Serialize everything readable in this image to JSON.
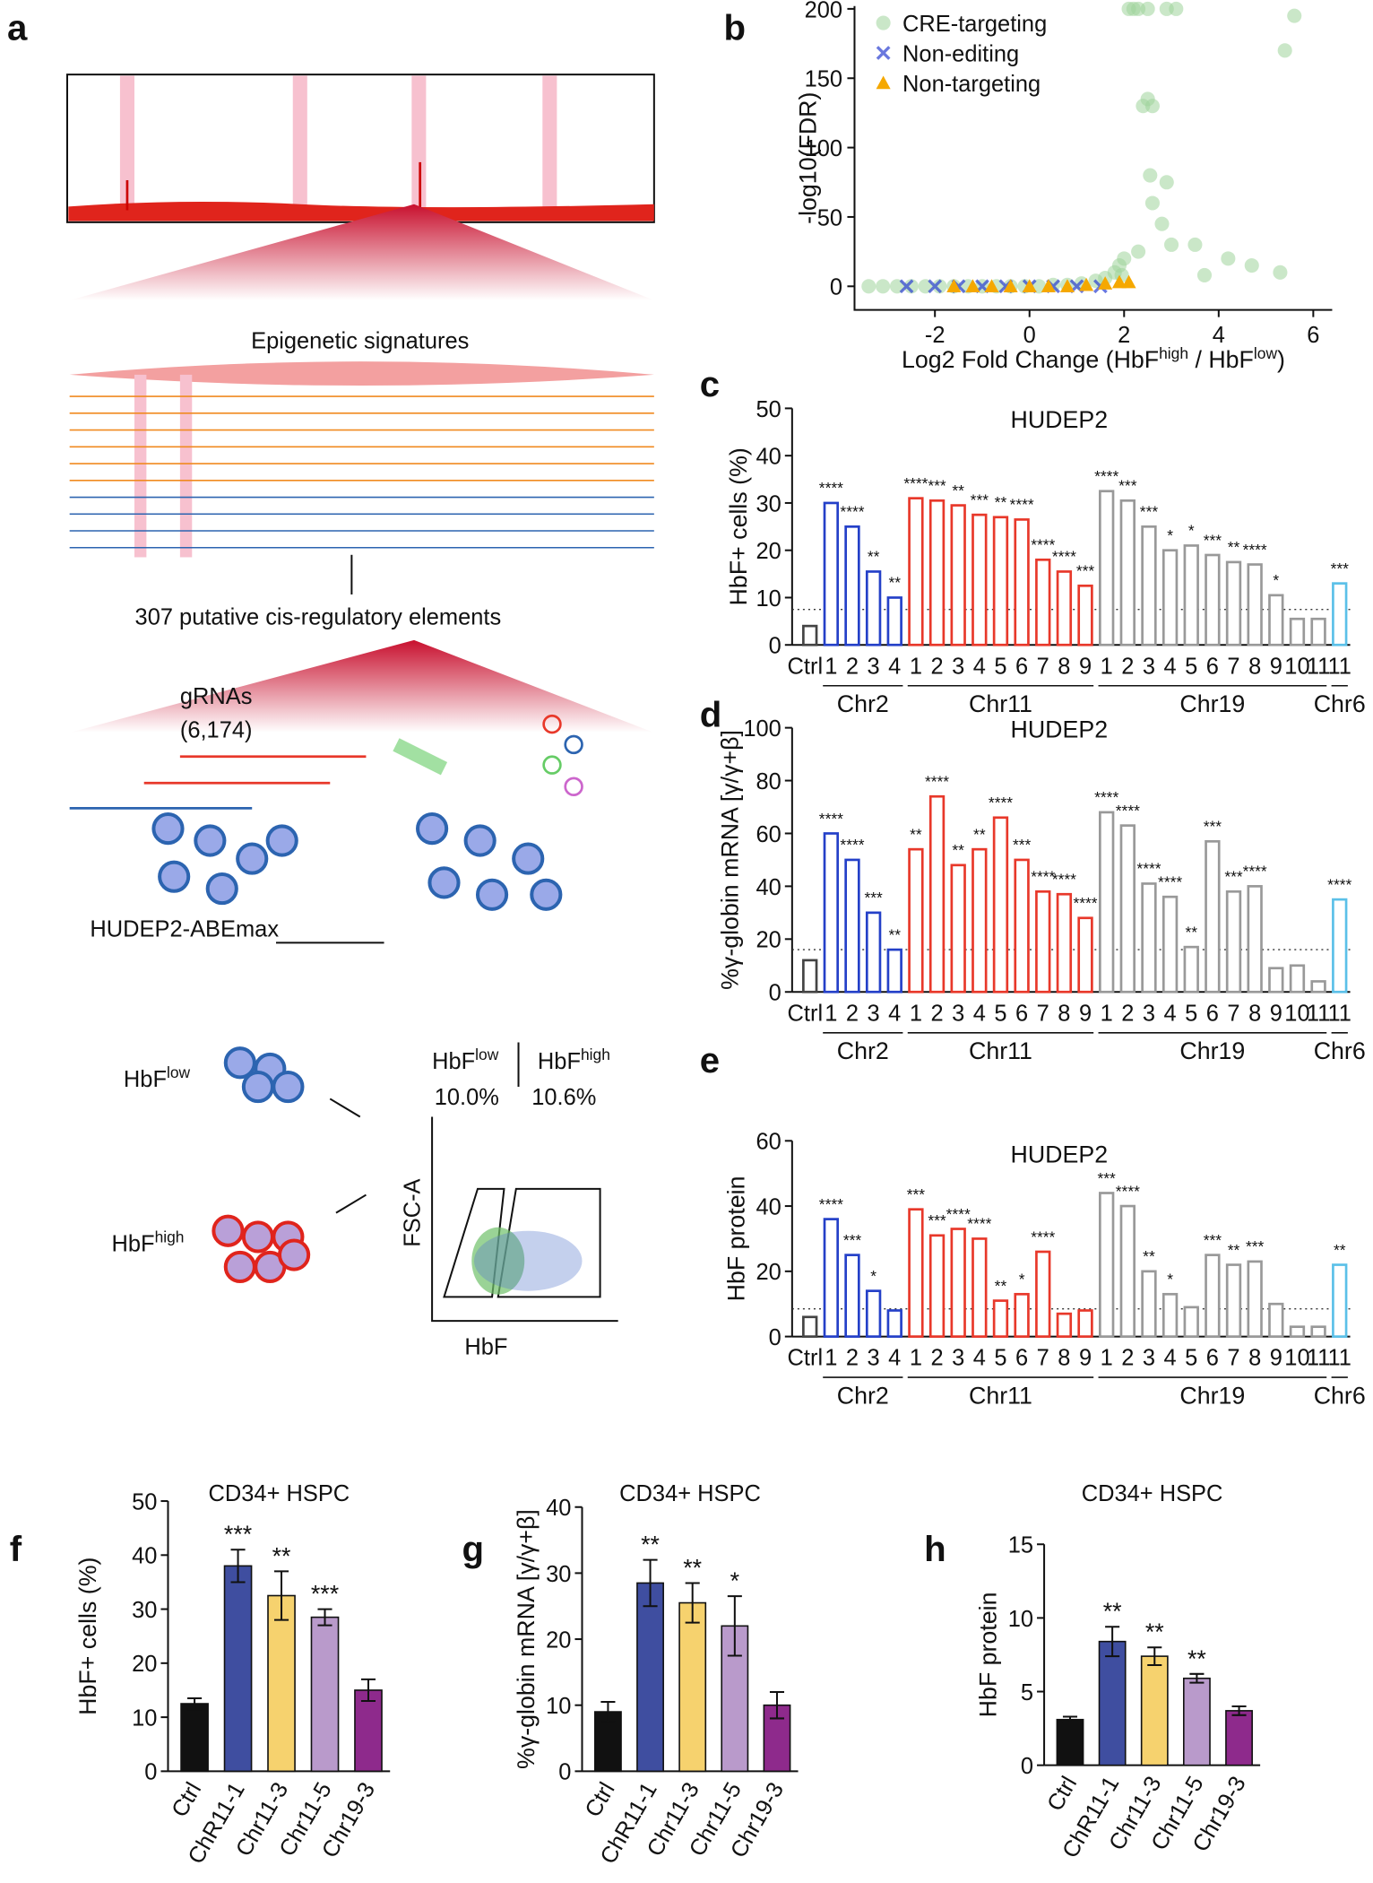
{
  "diagram": {
    "panel": "a",
    "epigenetic": "Epigenetic signatures",
    "elements": "307 putative cis-regulatory elements",
    "grnas": "gRNAs",
    "grna_count": "(6,174)",
    "cell_line": "HUDEP2-ABEmax",
    "hbf_low": [
      "HbF",
      "low"
    ],
    "hbf_high": [
      "HbF",
      "high"
    ],
    "gate_low": [
      "HbF",
      "low"
    ],
    "gate_high": [
      "HbF",
      "high"
    ],
    "pct_low": "10.0%",
    "pct_high": "10.6%",
    "y_axis": "FSC-A",
    "x_axis": "HbF"
  },
  "chart_data": [
    {
      "type": "scatter",
      "panel": "b",
      "ylabel": "-log10(FDR)",
      "xlabel": [
        "Log2 Fold Change (HbF",
        "high",
        " / HbF",
        "low",
        ")"
      ],
      "xlim": [
        -3.7,
        6.4
      ],
      "ylim": [
        -17,
        202
      ],
      "xticks": [
        -2,
        0,
        2,
        4,
        6
      ],
      "yticks": [
        0,
        50,
        100,
        150,
        200
      ],
      "legend": "upper left",
      "series": [
        {
          "name": "CRE-targeting",
          "color": "#9fd49a",
          "marker": "circle",
          "x": [
            -3.4,
            -3.1,
            -2.8,
            -2.5,
            -2.2,
            -1.9,
            -1.6,
            -1.3,
            -1.0,
            -0.7,
            -0.4,
            -0.1,
            0.2,
            0.5,
            0.8,
            1.1,
            1.4,
            1.6,
            1.8,
            1.9,
            2.0,
            2.1,
            1.95,
            2.2,
            2.3,
            2.5,
            2.9,
            3.1,
            5.6,
            5.4,
            2.4,
            2.5,
            2.6,
            2.55,
            2.9,
            2.6,
            2.8,
            3.0,
            3.5,
            4.2,
            4.7,
            5.3,
            3.7,
            2.3
          ],
          "values": [
            0,
            0,
            0,
            0,
            0,
            0,
            0,
            0,
            0,
            0,
            0,
            0,
            0,
            1,
            1,
            2,
            4,
            6,
            10,
            15,
            20,
            200,
            8,
            200,
            200,
            200,
            200,
            200,
            195,
            170,
            130,
            135,
            130,
            80,
            75,
            60,
            45,
            30,
            30,
            20,
            15,
            10,
            8,
            25
          ]
        },
        {
          "name": "Non-editing",
          "color": "#2b3fd0",
          "marker": "x",
          "x": [
            -2.6,
            -2.0,
            -1.5,
            -1.0,
            -0.5,
            0,
            0.5,
            1.0,
            1.5
          ],
          "values": [
            0,
            0,
            0,
            0,
            0,
            0,
            0,
            0,
            0
          ]
        },
        {
          "name": "Non-targeting",
          "color": "#f5a800",
          "marker": "triangle",
          "x": [
            -1.6,
            -1.2,
            -0.8,
            -0.4,
            0,
            0.4,
            0.8,
            1.2,
            1.6,
            1.9,
            2.1
          ],
          "values": [
            0,
            0,
            0,
            0,
            0,
            0,
            0,
            1,
            2,
            3,
            3
          ]
        }
      ]
    },
    {
      "type": "bar",
      "panel": "c",
      "title": "HUDEP2",
      "ylabel": "HbF+ cells (%)",
      "filled": false,
      "categories": [
        "Ctrl",
        "1",
        "2",
        "3",
        "4",
        "1",
        "2",
        "3",
        "4",
        "5",
        "6",
        "7",
        "8",
        "9",
        "1",
        "2",
        "3",
        "4",
        "5",
        "6",
        "7",
        "8",
        "9",
        "10",
        "11",
        "11"
      ],
      "category_groups": [
        null,
        "Chr2",
        "Chr2",
        "Chr2",
        "Chr2",
        "Chr11",
        "Chr11",
        "Chr11",
        "Chr11",
        "Chr11",
        "Chr11",
        "Chr11",
        "Chr11",
        "Chr11",
        "Chr19",
        "Chr19",
        "Chr19",
        "Chr19",
        "Chr19",
        "Chr19",
        "Chr19",
        "Chr19",
        "Chr19",
        "Chr19",
        "Chr19",
        "Chr6"
      ],
      "colors": [
        "#444",
        "#2440c8",
        "#2440c8",
        "#2440c8",
        "#2440c8",
        "#e8382a",
        "#e8382a",
        "#e8382a",
        "#e8382a",
        "#e8382a",
        "#e8382a",
        "#e8382a",
        "#e8382a",
        "#e8382a",
        "#999",
        "#999",
        "#999",
        "#999",
        "#999",
        "#999",
        "#999",
        "#999",
        "#999",
        "#999",
        "#999",
        "#5bc0e8"
      ],
      "values": [
        4,
        30,
        25,
        15.5,
        10,
        31,
        30.5,
        29.5,
        27.5,
        27,
        26.5,
        18,
        15.5,
        12.5,
        32.5,
        30.5,
        25,
        20,
        21,
        19,
        17.5,
        17,
        10.5,
        5.5,
        5.5,
        13
      ],
      "significance": [
        null,
        "****",
        "****",
        "**",
        "**",
        "****",
        "***",
        "**",
        "***",
        "**",
        "****",
        "****",
        "****",
        "***",
        "****",
        "***",
        "***",
        "*",
        "*",
        "***",
        "**",
        "****",
        "*",
        null,
        null,
        "***"
      ],
      "reference_line": 7.5,
      "ylim": [
        0,
        50
      ],
      "yticks": [
        0,
        10,
        20,
        30,
        40,
        50
      ]
    },
    {
      "type": "bar",
      "panel": "d",
      "title": "HUDEP2",
      "ylabel": "%γ-globin mRNA [γ/γ+β]",
      "filled": false,
      "categories": [
        "Ctrl",
        "1",
        "2",
        "3",
        "4",
        "1",
        "2",
        "3",
        "4",
        "5",
        "6",
        "7",
        "8",
        "9",
        "1",
        "2",
        "3",
        "4",
        "5",
        "6",
        "7",
        "8",
        "9",
        "10",
        "11",
        "11"
      ],
      "category_groups": [
        null,
        "Chr2",
        "Chr2",
        "Chr2",
        "Chr2",
        "Chr11",
        "Chr11",
        "Chr11",
        "Chr11",
        "Chr11",
        "Chr11",
        "Chr11",
        "Chr11",
        "Chr11",
        "Chr19",
        "Chr19",
        "Chr19",
        "Chr19",
        "Chr19",
        "Chr19",
        "Chr19",
        "Chr19",
        "Chr19",
        "Chr19",
        "Chr19",
        "Chr6"
      ],
      "colors": [
        "#444",
        "#2440c8",
        "#2440c8",
        "#2440c8",
        "#2440c8",
        "#e8382a",
        "#e8382a",
        "#e8382a",
        "#e8382a",
        "#e8382a",
        "#e8382a",
        "#e8382a",
        "#e8382a",
        "#e8382a",
        "#999",
        "#999",
        "#999",
        "#999",
        "#999",
        "#999",
        "#999",
        "#999",
        "#999",
        "#999",
        "#999",
        "#5bc0e8"
      ],
      "values": [
        12,
        60,
        50,
        30,
        16,
        54,
        74,
        48,
        54,
        66,
        50,
        38,
        37,
        28,
        68,
        63,
        41,
        36,
        17,
        57,
        38,
        40,
        9,
        10,
        4,
        35
      ],
      "significance": [
        null,
        "****",
        "****",
        "***",
        "**",
        "**",
        "****",
        "**",
        "**",
        "****",
        "***",
        "****",
        "****",
        "****",
        "****",
        "****",
        "****",
        "****",
        "**",
        "***",
        "***",
        "****",
        null,
        null,
        null,
        "****"
      ],
      "reference_line": 16,
      "ylim": [
        0,
        100
      ],
      "yticks": [
        0,
        20,
        40,
        60,
        80,
        100
      ]
    },
    {
      "type": "bar",
      "panel": "e",
      "title": "HUDEP2",
      "ylabel": "HbF protein",
      "filled": false,
      "categories": [
        "Ctrl",
        "1",
        "2",
        "3",
        "4",
        "1",
        "2",
        "3",
        "4",
        "5",
        "6",
        "7",
        "8",
        "9",
        "1",
        "2",
        "3",
        "4",
        "5",
        "6",
        "7",
        "8",
        "9",
        "10",
        "11",
        "11"
      ],
      "category_groups": [
        null,
        "Chr2",
        "Chr2",
        "Chr2",
        "Chr2",
        "Chr11",
        "Chr11",
        "Chr11",
        "Chr11",
        "Chr11",
        "Chr11",
        "Chr11",
        "Chr11",
        "Chr11",
        "Chr19",
        "Chr19",
        "Chr19",
        "Chr19",
        "Chr19",
        "Chr19",
        "Chr19",
        "Chr19",
        "Chr19",
        "Chr19",
        "Chr19",
        "Chr6"
      ],
      "colors": [
        "#444",
        "#2440c8",
        "#2440c8",
        "#2440c8",
        "#2440c8",
        "#e8382a",
        "#e8382a",
        "#e8382a",
        "#e8382a",
        "#e8382a",
        "#e8382a",
        "#e8382a",
        "#e8382a",
        "#e8382a",
        "#999",
        "#999",
        "#999",
        "#999",
        "#999",
        "#999",
        "#999",
        "#999",
        "#999",
        "#999",
        "#999",
        "#5bc0e8"
      ],
      "values": [
        6,
        36,
        25,
        14,
        8,
        39,
        31,
        33,
        30,
        11,
        13,
        26,
        7,
        8,
        44,
        40,
        20,
        13,
        9,
        25,
        22,
        23,
        10,
        3,
        3,
        22
      ],
      "significance": [
        null,
        "****",
        "***",
        "*",
        null,
        "***",
        "***",
        "****",
        "****",
        "**",
        "*",
        "****",
        null,
        null,
        "***",
        "****",
        "**",
        "*",
        null,
        "***",
        "**",
        "***",
        null,
        null,
        null,
        "**"
      ],
      "reference_line": 8.5,
      "ylim": [
        0,
        60
      ],
      "yticks": [
        0,
        20,
        40,
        60
      ]
    },
    {
      "type": "bar",
      "panel": "f",
      "title": "CD34+ HSPC",
      "ylabel": "HbF+ cells (%)",
      "filled": true,
      "categories": [
        "Ctrl",
        "ChR11-1",
        "Chr11-3",
        "Chr11-5",
        "Chr19-3"
      ],
      "colors": [
        "#111111",
        "#3f4ea0",
        "#f6d26e",
        "#b99acb",
        "#8e2a8c"
      ],
      "values": [
        12.5,
        38,
        32.5,
        28.5,
        15
      ],
      "errors": [
        1,
        3,
        4.5,
        1.5,
        2
      ],
      "significance": [
        null,
        "***",
        "**",
        "***",
        null
      ],
      "ylim": [
        0,
        50
      ],
      "yticks": [
        0,
        10,
        20,
        30,
        40,
        50
      ]
    },
    {
      "type": "bar",
      "panel": "g",
      "title": "CD34+ HSPC",
      "ylabel": "%γ-globin mRNA [γ/γ+β]",
      "filled": true,
      "categories": [
        "Ctrl",
        "ChR11-1",
        "Chr11-3",
        "Chr11-5",
        "Chr19-3"
      ],
      "colors": [
        "#111111",
        "#3f4ea0",
        "#f6d26e",
        "#b99acb",
        "#8e2a8c"
      ],
      "values": [
        9,
        28.5,
        25.5,
        22,
        10
      ],
      "errors": [
        1.5,
        3.5,
        3,
        4.5,
        2
      ],
      "significance": [
        null,
        "**",
        "**",
        "*",
        null
      ],
      "ylim": [
        0,
        40
      ],
      "yticks": [
        0,
        10,
        20,
        30,
        40
      ]
    },
    {
      "type": "bar",
      "panel": "h",
      "title": "CD34+ HSPC",
      "ylabel": "HbF protein",
      "filled": true,
      "categories": [
        "Ctrl",
        "ChR11-1",
        "Chr11-3",
        "Chr11-5",
        "Chr19-3"
      ],
      "colors": [
        "#111111",
        "#3f4ea0",
        "#f6d26e",
        "#b99acb",
        "#8e2a8c"
      ],
      "values": [
        3.1,
        8.4,
        7.4,
        5.9,
        3.7
      ],
      "errors": [
        0.2,
        1,
        0.6,
        0.3,
        0.3
      ],
      "significance": [
        null,
        "**",
        "**",
        "**",
        null
      ],
      "ylim": [
        0,
        15
      ],
      "yticks": [
        0,
        5,
        10,
        15
      ]
    }
  ]
}
